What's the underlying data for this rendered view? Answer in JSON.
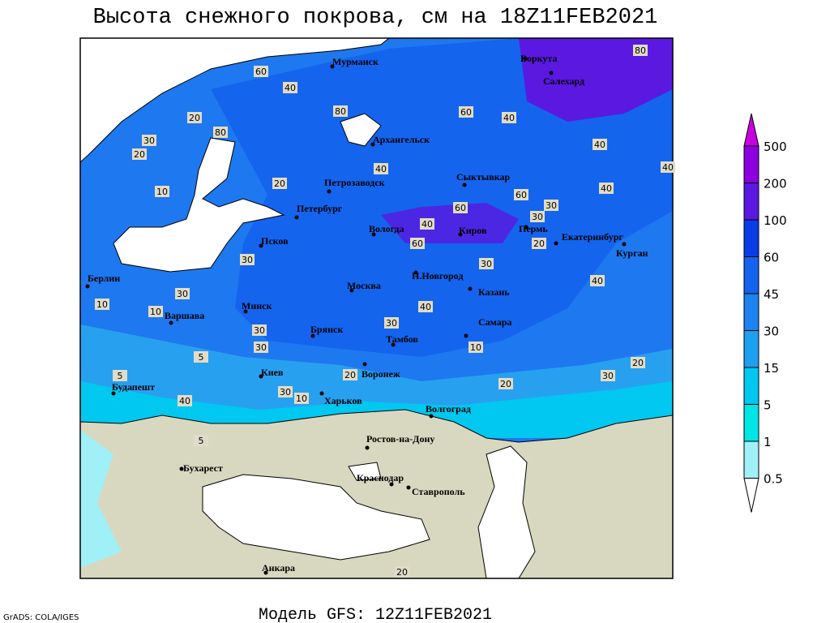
{
  "title": "Высота снежного покрова, см на 18Z11FEB2021",
  "footer": "Модель GFS: 12Z11FEB2021",
  "credit": "GrADS: COLA/IGES",
  "colorbar": {
    "levels": [
      0.5,
      1,
      5,
      15,
      30,
      45,
      60,
      100,
      200,
      500
    ],
    "colors": [
      "#ffffff",
      "#a0f0f8",
      "#00e6e6",
      "#00c8f0",
      "#1ea0f0",
      "#1e82f0",
      "#1464ee",
      "#0a3ce8",
      "#5a18e0",
      "#8c00e0",
      "#c800e0"
    ]
  },
  "cities": [
    "Мурманск",
    "Воркута",
    "Салехард",
    "Архангельск",
    "Сыктывкар",
    "Петрозаводск",
    "Петербург",
    "Вологда",
    "Киров",
    "Пермь",
    "Екатеринбург",
    "Курган",
    "Псков",
    "Н.Новгород",
    "Казань",
    "Москва",
    "Берлин",
    "Минск",
    "Варшава",
    "Брянск",
    "Тамбов",
    "Самара",
    "Киев",
    "Воронеж",
    "Будапешт",
    "Харьков",
    "Волгоград",
    "Ростов-на-Дону",
    "Бухарест",
    "Краснодар",
    "Ставрополь",
    "Анкара"
  ],
  "contour_labels": [
    60,
    40,
    20,
    80,
    30,
    20,
    10,
    20,
    40,
    60,
    40,
    40,
    30,
    30,
    60,
    60,
    40,
    80,
    60,
    30,
    80,
    40,
    40,
    40,
    20,
    30,
    10,
    10,
    30,
    30,
    30,
    40,
    30,
    20,
    30,
    10,
    5,
    20,
    40,
    20,
    30,
    10,
    5,
    5,
    20
  ]
}
